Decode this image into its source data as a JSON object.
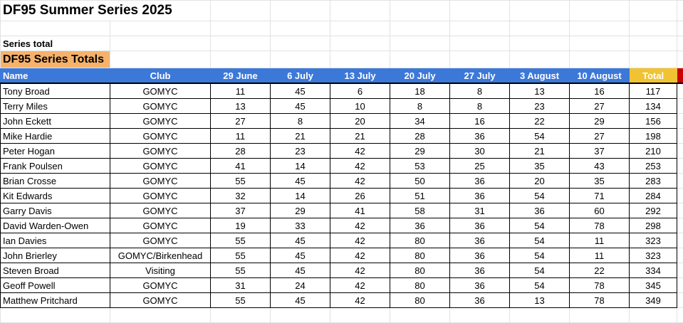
{
  "sheet": {
    "title": "DF95 Summer Series 2025",
    "series_total_label": "Series total",
    "section_title": "DF95 Series Totals",
    "columns": [
      "Name",
      "Club",
      "29 June",
      "6 July",
      "13 July",
      "20 July",
      "27 July",
      "3 August",
      "10 August",
      "Total"
    ],
    "colors": {
      "header_blue": "#3c78d8",
      "total_yellow": "#f1c232",
      "section_orange": "#f6b26b",
      "marker_red": "#cc0000"
    },
    "rows": [
      {
        "name": "Tony Broad",
        "club": "GOMYC",
        "scores": [
          11,
          45,
          6,
          18,
          8,
          13,
          16
        ],
        "total": 117
      },
      {
        "name": "Terry Miles",
        "club": "GOMYC",
        "scores": [
          13,
          45,
          10,
          8,
          8,
          23,
          27
        ],
        "total": 134
      },
      {
        "name": "John Eckett",
        "club": "GOMYC",
        "scores": [
          27,
          8,
          20,
          34,
          16,
          22,
          29
        ],
        "total": 156
      },
      {
        "name": "Mike Hardie",
        "club": "GOMYC",
        "scores": [
          11,
          21,
          21,
          28,
          36,
          54,
          27
        ],
        "total": 198
      },
      {
        "name": "Peter Hogan",
        "club": "GOMYC",
        "scores": [
          28,
          23,
          42,
          29,
          30,
          21,
          37
        ],
        "total": 210
      },
      {
        "name": "Frank Poulsen",
        "club": "GOMYC",
        "scores": [
          41,
          14,
          42,
          53,
          25,
          35,
          43
        ],
        "total": 253
      },
      {
        "name": "Brian Crosse",
        "club": "GOMYC",
        "scores": [
          55,
          45,
          42,
          50,
          36,
          20,
          35
        ],
        "total": 283
      },
      {
        "name": "Kit Edwards",
        "club": "GOMYC",
        "scores": [
          32,
          14,
          26,
          51,
          36,
          54,
          71
        ],
        "total": 284
      },
      {
        "name": "Garry Davis",
        "club": "GOMYC",
        "scores": [
          37,
          29,
          41,
          58,
          31,
          36,
          60
        ],
        "total": 292
      },
      {
        "name": "David Warden-Owen",
        "club": "GOMYC",
        "scores": [
          19,
          33,
          42,
          36,
          36,
          54,
          78
        ],
        "total": 298
      },
      {
        "name": "Ian Davies",
        "club": "GOMYC",
        "scores": [
          55,
          45,
          42,
          80,
          36,
          54,
          11
        ],
        "total": 323
      },
      {
        "name": "John Brierley",
        "club": "GOMYC/Birkenhead",
        "scores": [
          55,
          45,
          42,
          80,
          36,
          54,
          11
        ],
        "total": 323
      },
      {
        "name": "Steven Broad",
        "club": "Visiting",
        "scores": [
          55,
          45,
          42,
          80,
          36,
          54,
          22
        ],
        "total": 334
      },
      {
        "name": "Geoff Powell",
        "club": "GOMYC",
        "scores": [
          31,
          24,
          42,
          80,
          36,
          54,
          78
        ],
        "total": 345
      },
      {
        "name": "Matthew Pritchard",
        "club": "GOMYC",
        "scores": [
          55,
          45,
          42,
          80,
          36,
          13,
          78
        ],
        "total": 349
      }
    ]
  }
}
